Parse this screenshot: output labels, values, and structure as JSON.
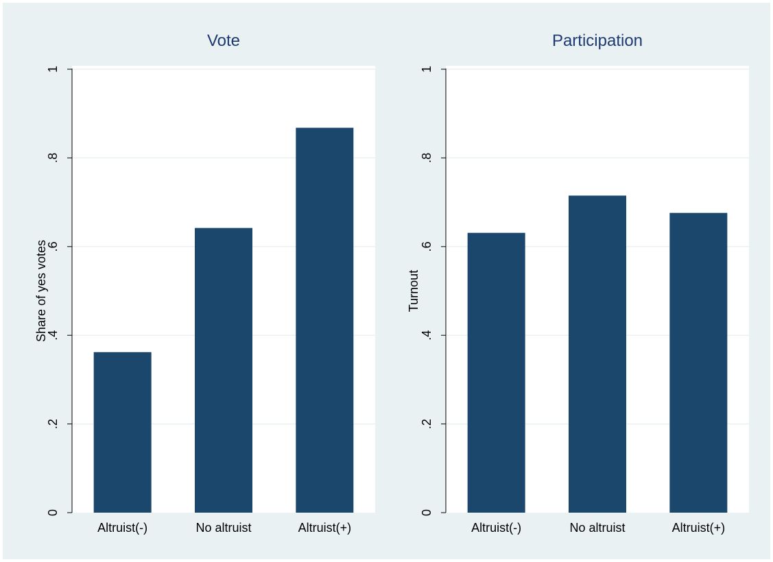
{
  "chart_data": [
    {
      "type": "bar",
      "title": "Vote",
      "xlabel": "",
      "ylabel": "Share of yes votes",
      "categories": [
        "Altruist(-)",
        "No altruist",
        "Altruist(+)"
      ],
      "values": [
        0.362,
        0.642,
        0.868
      ],
      "ylim": [
        0,
        1
      ],
      "yticks": [
        0,
        0.2,
        0.4,
        0.6,
        0.8,
        1
      ],
      "ytick_labels": [
        "0",
        ".2",
        ".4",
        ".6",
        ".8",
        "1"
      ],
      "grid": true,
      "bar_color": "#1c476d"
    },
    {
      "type": "bar",
      "title": "Participation",
      "xlabel": "",
      "ylabel": "Turnout",
      "categories": [
        "Altruist(-)",
        "No altruist",
        "Altruist(+)"
      ],
      "values": [
        0.631,
        0.715,
        0.676
      ],
      "ylim": [
        0,
        1
      ],
      "yticks": [
        0,
        0.2,
        0.4,
        0.6,
        0.8,
        1
      ],
      "ytick_labels": [
        "0",
        ".2",
        ".4",
        ".6",
        ".8",
        "1"
      ],
      "grid": true,
      "bar_color": "#1c476d"
    }
  ]
}
